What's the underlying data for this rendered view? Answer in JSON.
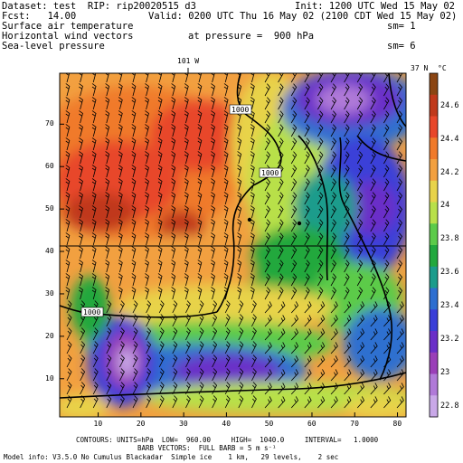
{
  "header": {
    "dataset_line": "Dataset: test  RIP: rip20020515 d3",
    "init_line": "Init: 1200 UTC Wed 15 May 02",
    "fcst_line": "Fcst:   14.00",
    "valid_line": "Valid: 0200 UTC Thu 16 May 02 (2100 CDT Wed 15 May 02)",
    "field1": "Surface air temperature",
    "field1_sm": "sm= 1",
    "field2": "Horizontal wind vectors",
    "field2_pressure": "at pressure =  900 hPa",
    "field3": "Sea-level pressure",
    "field3_sm": "sm= 6"
  },
  "map": {
    "top_label": "101 W",
    "right_label": "37 N",
    "unit_label": "°C",
    "x_ticks": [
      "10",
      "20",
      "30",
      "40",
      "50",
      "60",
      "70",
      "80"
    ],
    "y_ticks": [
      "10",
      "20",
      "30",
      "40",
      "50",
      "60",
      "70"
    ],
    "contour_labels": [
      "1000",
      "1000",
      "1000"
    ],
    "colorbar": {
      "labels": [
        "24.6",
        "24.4",
        "24.2",
        "24",
        "23.8",
        "23.6",
        "23.4",
        "23.2",
        "23",
        "22.8"
      ],
      "colors": [
        "#8B4513",
        "#C0391B",
        "#E8472A",
        "#F07A2A",
        "#F2A040",
        "#E8D34A",
        "#B8E04A",
        "#5CCB4A",
        "#22A83E",
        "#1B9C8C",
        "#2E6FD0",
        "#3A3FD8",
        "#6A2FC8",
        "#9A3FB8",
        "#B07AD8",
        "#C9A8E8"
      ]
    }
  },
  "footer": {
    "line1": "CONTOURS: UNITS=hPa  LOW=  960.00     HIGH=  1040.0     INTERVAL=   1.0000",
    "line2": "BARB VECTORS:  FULL BARB = 5 m s⁻¹",
    "line3": "Model info: V3.5.0 No Cumulus Blackadar  Simple ice    1 km,   29 levels,    2 sec"
  }
}
